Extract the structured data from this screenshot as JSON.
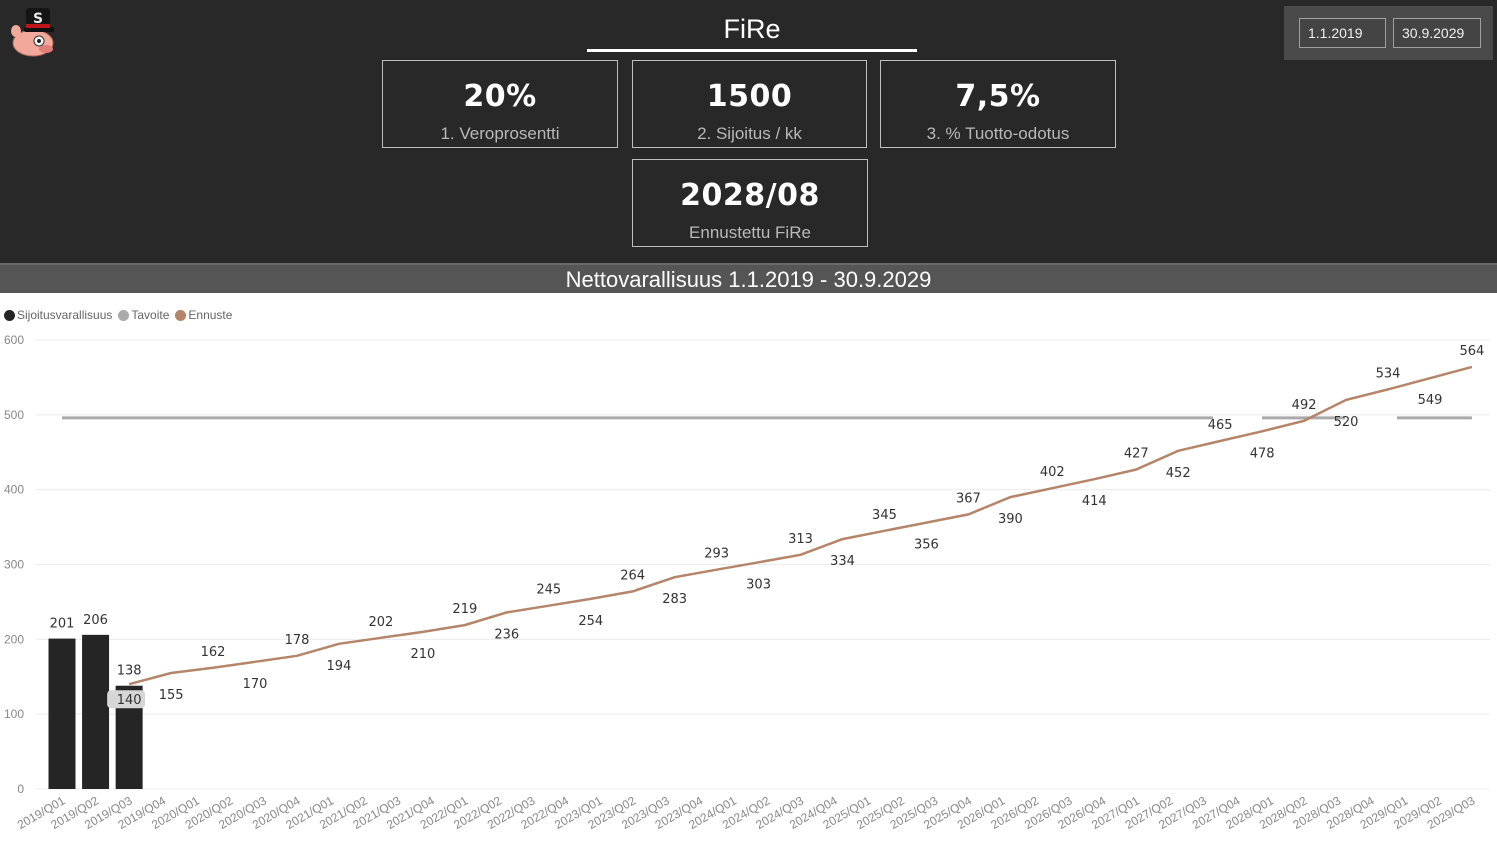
{
  "header": {
    "title": "FiRe",
    "logo": "pig-top-hat-icon"
  },
  "date_range": {
    "start": "1.1.2019",
    "end": "30.9.2029"
  },
  "kpis": [
    {
      "value": "20%",
      "label": "1. Veroprosentti"
    },
    {
      "value": "1500",
      "label": "2. Sijoitus / kk"
    },
    {
      "value": "7,5%",
      "label": "3. % Tuotto-odotus"
    },
    {
      "value": "2028/08",
      "label": "Ennustettu FiRe"
    }
  ],
  "chart_header": "Nettovarallisuus 1.1.2019 - 30.9.2029",
  "legend": [
    {
      "label": "Sijoitusvarallisuus",
      "color": "#252525"
    },
    {
      "label": "Tavoite",
      "color": "#aaaaaa"
    },
    {
      "label": "Ennuste",
      "color": "#b5856a"
    }
  ],
  "chart_data": {
    "type": "bar+line",
    "title": "Nettovarallisuus 1.1.2019 - 30.9.2029",
    "xlabel": "",
    "ylabel": "",
    "ylim": [
      0,
      600
    ],
    "yticks": [
      0,
      100,
      200,
      300,
      400,
      500,
      600
    ],
    "grid": true,
    "legend_position": "top-left",
    "categories": [
      "2019/Q01",
      "2019/Q02",
      "2019/Q03",
      "2019/Q04",
      "2020/Q01",
      "2020/Q02",
      "2020/Q03",
      "2020/Q04",
      "2021/Q01",
      "2021/Q02",
      "2021/Q03",
      "2021/Q04",
      "2022/Q01",
      "2022/Q02",
      "2022/Q03",
      "2022/Q04",
      "2023/Q01",
      "2023/Q02",
      "2023/Q03",
      "2023/Q04",
      "2024/Q01",
      "2024/Q02",
      "2024/Q03",
      "2024/Q04",
      "2025/Q01",
      "2025/Q02",
      "2025/Q03",
      "2025/Q04",
      "2026/Q01",
      "2026/Q02",
      "2026/Q03",
      "2026/Q04",
      "2027/Q01",
      "2027/Q02",
      "2027/Q03",
      "2027/Q04",
      "2028/Q01",
      "2028/Q02",
      "2028/Q03",
      "2028/Q04",
      "2029/Q01",
      "2029/Q02",
      "2029/Q03"
    ],
    "series": [
      {
        "name": "Sijoitusvarallisuus",
        "type": "bar",
        "color": "#252525",
        "values": [
          201,
          206,
          138,
          null,
          null,
          null,
          null,
          null,
          null,
          null,
          null,
          null,
          null,
          null,
          null,
          null,
          null,
          null,
          null,
          null,
          null,
          null,
          null,
          null,
          null,
          null,
          null,
          null,
          null,
          null,
          null,
          null,
          null,
          null,
          null,
          null,
          null,
          null,
          null,
          null,
          null,
          null,
          null
        ]
      },
      {
        "name": "Tavoite",
        "type": "line",
        "color": "#aaaaaa",
        "values": [
          496,
          496,
          496,
          496,
          496,
          496,
          496,
          496,
          496,
          496,
          496,
          496,
          496,
          496,
          496,
          496,
          496,
          496,
          496,
          496,
          496,
          496,
          496,
          496,
          496,
          496,
          496,
          496,
          496,
          496,
          496,
          496,
          496,
          496,
          496,
          496,
          496,
          496,
          496,
          496,
          496,
          496,
          496
        ]
      },
      {
        "name": "Ennuste",
        "type": "line",
        "color": "#b5856a",
        "values": [
          null,
          null,
          140,
          155,
          162,
          170,
          178,
          194,
          202,
          210,
          219,
          236,
          245,
          254,
          264,
          283,
          293,
          303,
          313,
          334,
          345,
          356,
          367,
          390,
          402,
          414,
          427,
          452,
          465,
          478,
          492,
          520,
          534,
          549,
          564,
          null,
          null,
          null,
          null,
          null,
          null,
          null,
          null
        ]
      }
    ],
    "ennuste_labels_by_category_index": {
      "2": 140,
      "3": 155,
      "4": 162,
      "5": 170,
      "6": 178,
      "7": 194,
      "8": 202,
      "9": 210,
      "10": 219,
      "11": 236,
      "12": 245,
      "13": 254,
      "14": 264,
      "15": 283,
      "16": 293,
      "17": 303,
      "18": 313,
      "19": 334,
      "20": 345,
      "21": 356,
      "22": 367,
      "23": 390,
      "24": 402,
      "25": 414,
      "26": 427,
      "27": 452,
      "28": 465,
      "29": 478,
      "30": 492,
      "31": 520,
      "32": 534,
      "33": 549,
      "34": 564
    }
  }
}
